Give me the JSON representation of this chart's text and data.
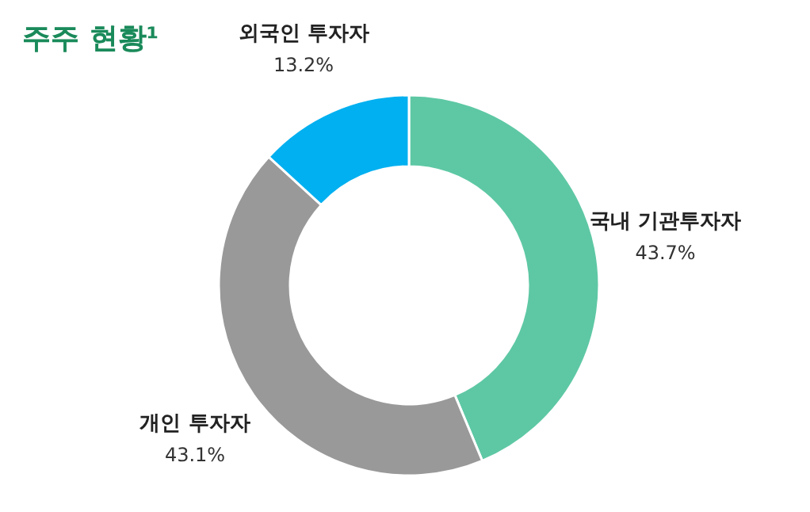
{
  "chart_data": {
    "type": "donut",
    "title": "주주 현황¹",
    "categories": [
      "국내 기관투자자",
      "개인 투자자",
      "외국인 투자자"
    ],
    "values": [
      43.7,
      43.1,
      13.2
    ],
    "colors": [
      "#5ec8a4",
      "#999999",
      "#00b0f0"
    ],
    "value_labels": [
      "43.7%",
      "43.1%",
      "13.2%"
    ]
  }
}
